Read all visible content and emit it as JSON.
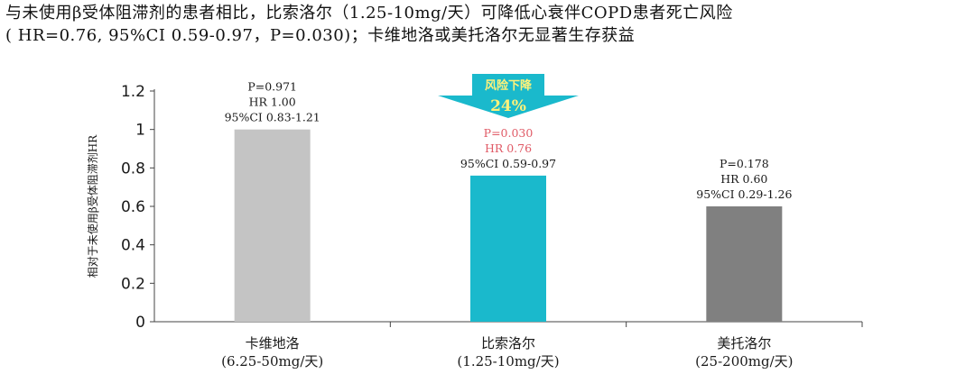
{
  "title": {
    "line1": "与未使用β受体阻滞剂的患者相比，比索洛尔（1.25-10mg/天）可降低心衰伴COPD患者死亡风险",
    "line2": "( HR=0.76, 95%CI 0.59-0.97，P=0.030)；卡维地洛或美托洛尔无显著生存获益"
  },
  "arrow": {
    "line1": "风险下降",
    "line2": "24%",
    "color": "#1ab9cc",
    "text_color": "#fff27a"
  },
  "chart_data": {
    "type": "bar",
    "title": "",
    "ylabel": "相对于未使用β受体阻滞剂HR",
    "xlabel": "",
    "ylim": [
      0,
      1.2
    ],
    "yticks": [
      0,
      0.2,
      0.4,
      0.6,
      0.8,
      1,
      1.2
    ],
    "ytick_labels": [
      "0",
      "0.2",
      "0.4",
      "0.6",
      "0.8",
      "1",
      "1.2"
    ],
    "grid": false,
    "categories": [
      "卡维地洛",
      "比索洛尔",
      "美托洛尔"
    ],
    "category_doses": [
      "(6.25-50mg/天)",
      "(1.25-10mg/天)",
      "(25-200mg/天)"
    ],
    "values": [
      1.0,
      0.76,
      0.6
    ],
    "colors": [
      "#c4c4c4",
      "#1ab9cc",
      "#808080"
    ],
    "annotations": [
      {
        "p": "P=0.971",
        "hr": "HR 1.00",
        "ci": "95%CI 0.83-1.21",
        "color": "#1a1a1a"
      },
      {
        "p": "P=0.030",
        "hr": "HR 0.76",
        "ci": "95%CI 0.59-0.97",
        "color": "#e05a66"
      },
      {
        "p": "P=0.178",
        "hr": "HR 0.60",
        "ci": "95%CI 0.29-1.26",
        "color": "#1a1a1a"
      }
    ]
  }
}
